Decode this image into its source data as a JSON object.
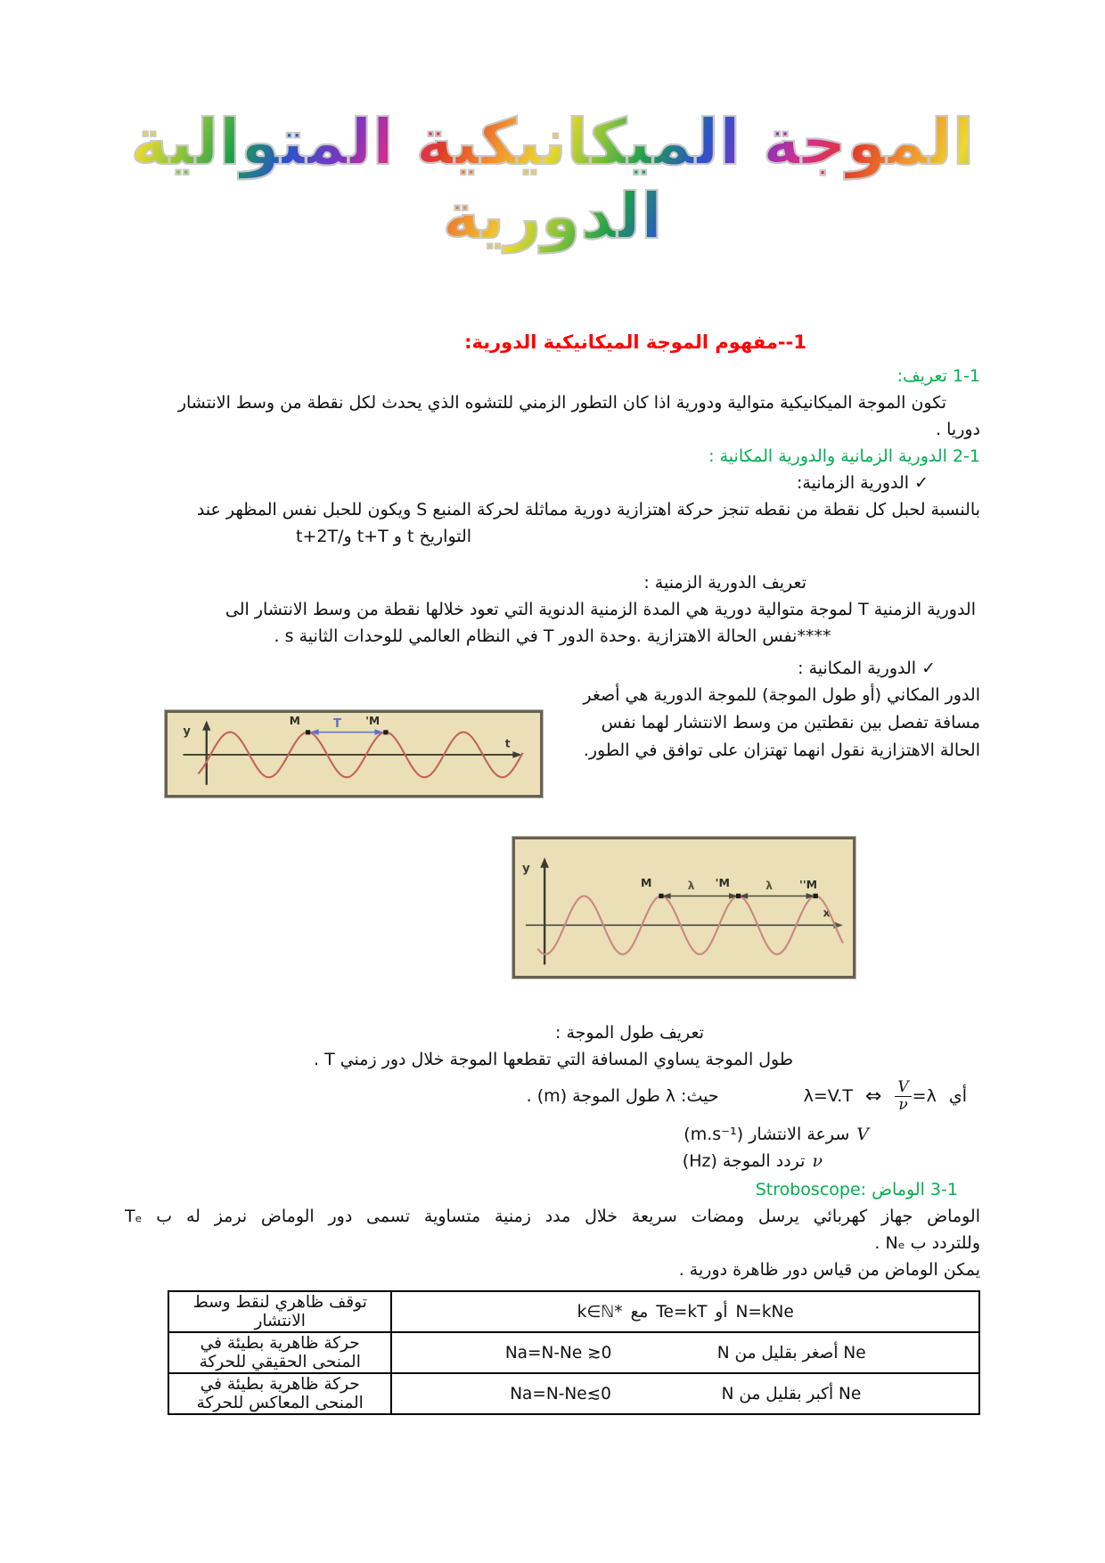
{
  "title": "الموجة الميكانيكية المتوالية الدورية",
  "s1": {
    "heading": "1--مفهوم الموجة الميكانيكية الدورية:",
    "h_def": "1-1 تعريف:",
    "def_line1": "تكون الموجة الميكانيكية متوالية ودورية اذا كان التطور الزمني للتشوه الذي يحدث لكل نقطة من وسط الانتشار",
    "def_line2": "دوريا .",
    "h_period": "2-1 الدورية الزمانية والدورية المكانية :",
    "check_temporal": "✓ الدورية الزمانية:",
    "rope_line1": "بالنسبة لحبل كل نقطة من نقطه تنجز حركة اهتزازية دورية مماثلة لحركة المنبع S ويكون للحبل نفس المظهر عند",
    "rope_line2": "التواريخ t و t+T و/t+2T",
    "temporal_def_title": "تعريف الدورية الزمنية :",
    "temporal_def_1": "الدورية الزمنية T لموجة متوالية دورية هي المدة الزمنية الدنوية التي تعود خلالها نقطة من وسط الانتشار الى",
    "temporal_def_2": "****نفس الحالة الاهتزازية .وحدة الدور T في النظام العالمي للوحدات الثانية s .",
    "check_spatial": "✓ الدورية المكانية :",
    "spatial_paragraph": "الدور المكاني (أو طول الموجة) للموجة الدورية هي أصغر مسافة تفصل بين نقطتين من وسط الانتشار لهما نفس الحالة الاهتزازية نقول انهما تهتزان على توافق في الطور."
  },
  "wavelength": {
    "title": "تعريف طول الموجة :",
    "p": "طول الموجة يساوي المسافة التي تقطعها الموجة خلال دور زمني T .",
    "ay": "أي",
    "frac_lhs": "λ=",
    "frac_num": "V",
    "frac_den": "ν",
    "iff": "⇔",
    "eq2": "λ=V.T",
    "where": "حيث: λ طول الموجة (m) .",
    "v_sym": "V",
    "v_text": "سرعة الانتشار (m.s⁻¹)",
    "nu_sym": "ν",
    "nu_text": "تردد الموجة (Hz)"
  },
  "strobo": {
    "heading": "3-1 الوماض :Stroboscope",
    "p1": "الوماض جهاز كهربائي يرسل ومضات سريعة خلال مدد زمنية متساوية تسمى دور الوماض نرمز له ب Tₑ",
    "p2": "وللتردد ب Nₑ .",
    "p3": "يمكن الوماض من قياس دور ظاهرة دورية ."
  },
  "table": {
    "row1": {
      "parts": [
        "N=kNe",
        "أو",
        "Te=kT",
        "مع",
        "k∈ℕ*"
      ],
      "result": "توقف ظاهري لنقط وسط الانتشار"
    },
    "row2": {
      "cond_ar": "Ne أصغر بقليل من N",
      "cond_formula": "Na=N-Ne ≳0",
      "result": "حركة ظاهرية بطيئة في المنحى الحقيقي للحركة"
    },
    "row3": {
      "cond_ar": "Ne أكبر بقليل من N",
      "cond_formula": "Na=N-Ne≲0",
      "result": "حركة ظاهرية بطيئة في المنحى المعاكس للحركة"
    }
  },
  "fig1": {
    "y_label": "y",
    "t_label": "t",
    "m1": "M",
    "m2": "M'",
    "arrow_label": "T"
  },
  "fig2": {
    "y_label": "y",
    "x_label": "x",
    "m1": "M",
    "m2": "M'",
    "m3": "M''",
    "lambda1": "λ",
    "lambda2": "λ"
  }
}
